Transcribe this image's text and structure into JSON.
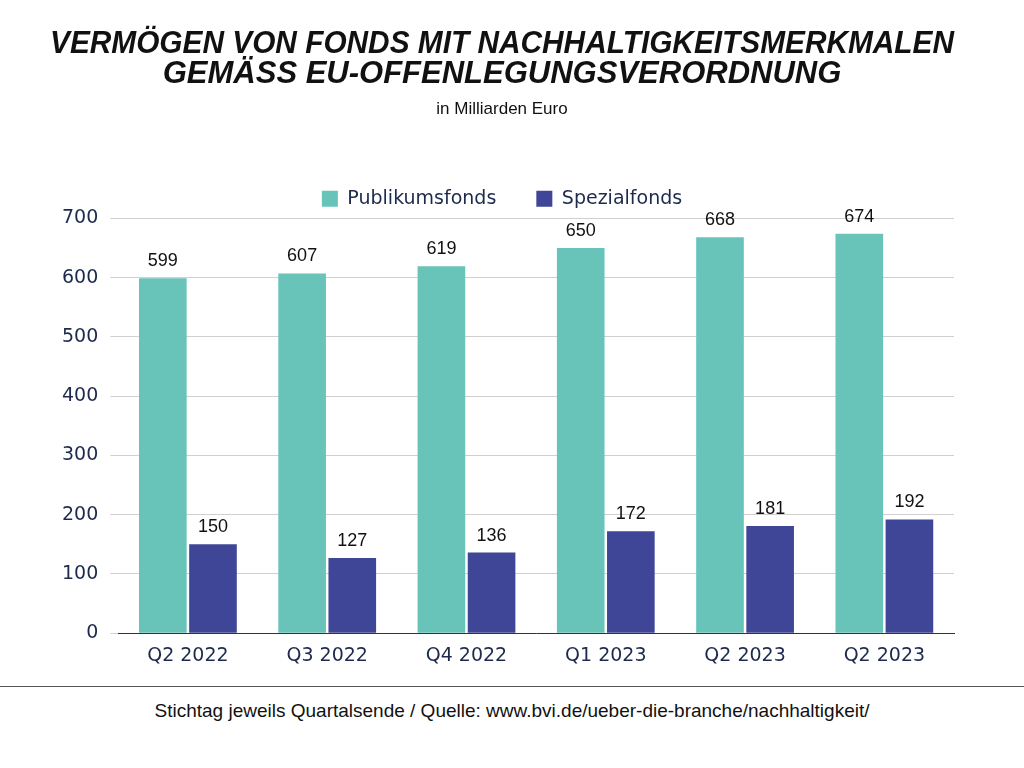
{
  "chart_data": {
    "type": "bar",
    "title": [
      "VERMÖGEN VON FONDS MIT NACHHALTIGKEITSMERKMALEN",
      "GEMÄSS EU-OFFENLEGUNGSVERORDNUNG"
    ],
    "subtitle": "in Milliarden Euro",
    "footnote": "Stichtag jeweils Quartalsende / Quelle: www.bvi.de/ueber-die-branche/nachhaltigkeit/",
    "categories": [
      "Q2 2022",
      "Q3 2022",
      "Q4 2022",
      "Q1 2023",
      "Q2 2023",
      "Q2 2023"
    ],
    "series": [
      {
        "name": "Publikumsfonds",
        "color": "#68c3b9",
        "values": [
          599,
          607,
          619,
          650,
          668,
          674
        ]
      },
      {
        "name": "Spezialfonds",
        "color": "#3f4697",
        "values": [
          150,
          127,
          136,
          172,
          181,
          192
        ]
      }
    ],
    "ylim": [
      0,
      700
    ],
    "yticks": [
      0,
      100,
      200,
      300,
      400,
      500,
      600,
      700
    ],
    "grid": true,
    "legend": "top",
    "data_labels": true
  }
}
